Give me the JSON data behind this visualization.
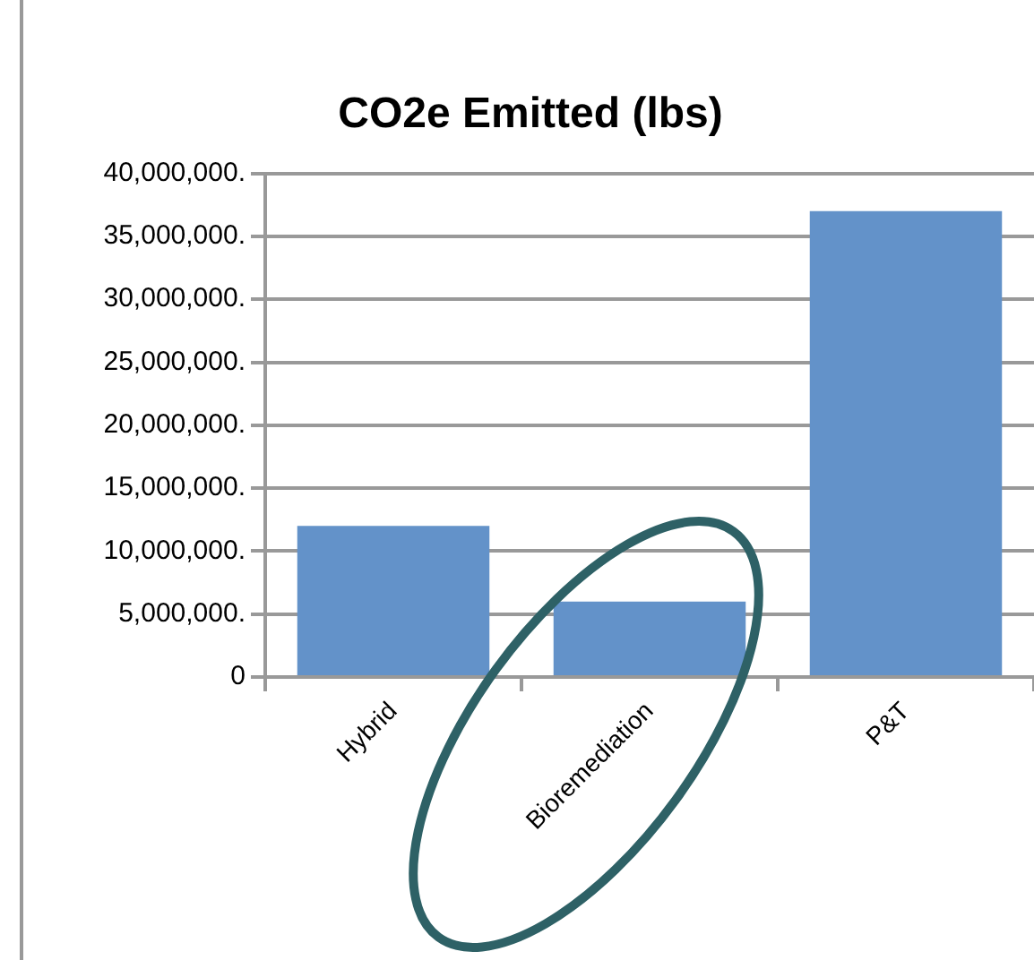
{
  "chart_data": {
    "type": "bar",
    "title": "CO2e Emitted (lbs)",
    "categories": [
      "Hybrid",
      "Bioremediation",
      "P&T"
    ],
    "values": [
      12000000,
      6000000,
      37000000
    ],
    "color": "#6392c9",
    "ylim": [
      0,
      40000000
    ],
    "yticks": [
      0,
      {
        "value": 5000000,
        "label": "5,000,000."
      },
      {
        "value": 10000000,
        "label": "10,000,000."
      },
      {
        "value": 15000000,
        "label": "15,000,000."
      },
      {
        "value": 20000000,
        "label": "20,000,000."
      },
      {
        "value": 25000000,
        "label": "25,000,000."
      },
      {
        "value": 30000000,
        "label": "30,000,000."
      },
      {
        "value": 35000000,
        "label": "35,000,000."
      },
      {
        "value": 40000000,
        "label": "40,000,000."
      }
    ],
    "grid": "y",
    "legend": false
  }
}
